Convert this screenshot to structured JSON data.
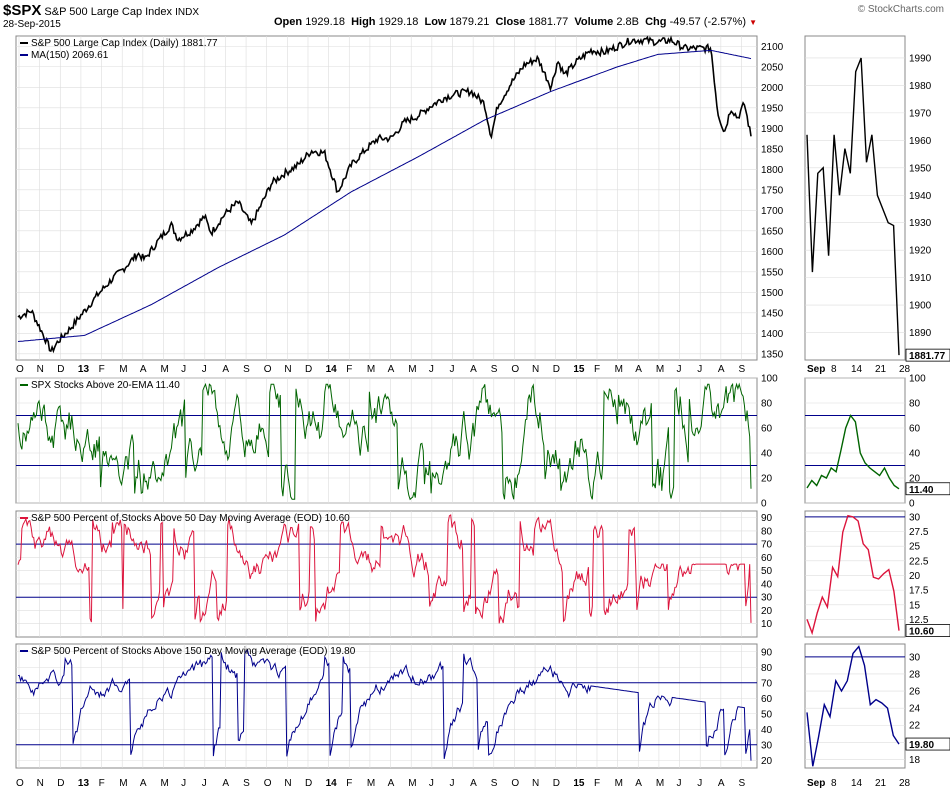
{
  "header": {
    "symbol": "$SPX",
    "name": "S&P 500 Large Cap Index",
    "exchange": "INDX",
    "date": "28-Sep-2015",
    "open_label": "Open",
    "open": "1929.18",
    "high_label": "High",
    "high": "1929.18",
    "low_label": "Low",
    "low": "1879.21",
    "close_label": "Close",
    "close": "1881.77",
    "volume_label": "Volume",
    "volume": "2.8B",
    "chg_label": "Chg",
    "chg": "-49.57 (-2.57%)",
    "watermark": "© StockCharts.com"
  },
  "colors": {
    "price": "#000000",
    "ma": "#00008b",
    "ema20": "#006400",
    "ma50": "#dc143c",
    "ma150": "#00008b",
    "hline": "#00008b",
    "grid": "#dddddd"
  },
  "time_axis": {
    "labels": [
      "O",
      "N",
      "D",
      "13",
      "F",
      "M",
      "A",
      "M",
      "J",
      "J",
      "A",
      "S",
      "O",
      "N",
      "D",
      "14",
      "F",
      "M",
      "A",
      "M",
      "J",
      "J",
      "A",
      "S",
      "O",
      "N",
      "D",
      "15",
      "F",
      "M",
      "A",
      "M",
      "J",
      "J",
      "A",
      "S"
    ],
    "bold_labels": [
      "13",
      "14",
      "15"
    ]
  },
  "zoom_axis": {
    "labels": [
      "Sep",
      "8",
      "14",
      "21",
      "28"
    ]
  },
  "chart_data": [
    {
      "type": "line",
      "title": "S&P 500 Large Cap Index (Daily) 1881.77",
      "series": [
        {
          "name": "S&P 500 Large Cap Index (Daily) 1881.77",
          "anchors": [
            [
              0,
              1440
            ],
            [
              2,
              1455
            ],
            [
              4,
              1390
            ],
            [
              5,
              1355
            ],
            [
              6,
              1380
            ],
            [
              8,
              1415
            ],
            [
              10,
              1455
            ],
            [
              12,
              1495
            ],
            [
              14,
              1530
            ],
            [
              16,
              1560
            ],
            [
              18,
              1595
            ],
            [
              19,
              1580
            ],
            [
              21,
              1625
            ],
            [
              23,
              1665
            ],
            [
              24,
              1630
            ],
            [
              26,
              1650
            ],
            [
              28,
              1685
            ],
            [
              29,
              1645
            ],
            [
              31,
              1690
            ],
            [
              33,
              1720
            ],
            [
              35,
              1665
            ],
            [
              37,
              1730
            ],
            [
              38,
              1765
            ],
            [
              40,
              1790
            ],
            [
              42,
              1810
            ],
            [
              44,
              1845
            ],
            [
              46,
              1840
            ],
            [
              48,
              1745
            ],
            [
              50,
              1810
            ],
            [
              52,
              1845
            ],
            [
              54,
              1875
            ],
            [
              56,
              1875
            ],
            [
              58,
              1915
            ],
            [
              60,
              1930
            ],
            [
              62,
              1955
            ],
            [
              64,
              1975
            ],
            [
              66,
              1985
            ],
            [
              68,
              1990
            ],
            [
              70,
              1960
            ],
            [
              71,
              1880
            ],
            [
              72,
              1955
            ],
            [
              74,
              2010
            ],
            [
              76,
              2055
            ],
            [
              78,
              2070
            ],
            [
              80,
              2000
            ],
            [
              81,
              2065
            ],
            [
              82,
              2030
            ],
            [
              84,
              2065
            ],
            [
              86,
              2090
            ],
            [
              88,
              2085
            ],
            [
              90,
              2100
            ],
            [
              92,
              2115
            ],
            [
              94,
              2115
            ],
            [
              96,
              2110
            ],
            [
              98,
              2115
            ],
            [
              100,
              2095
            ],
            [
              102,
              2095
            ],
            [
              104,
              2095
            ],
            [
              105,
              1940
            ],
            [
              106,
              1890
            ],
            [
              107,
              1950
            ],
            [
              108,
              1925
            ],
            [
              109,
              1960
            ],
            [
              110,
              1880
            ]
          ]
        },
        {
          "name": "MA(150) 2069.61",
          "anchors": [
            [
              0,
              1380
            ],
            [
              10,
              1395
            ],
            [
              20,
              1470
            ],
            [
              30,
              1560
            ],
            [
              40,
              1640
            ],
            [
              50,
              1745
            ],
            [
              60,
              1830
            ],
            [
              70,
              1920
            ],
            [
              80,
              1990
            ],
            [
              90,
              2050
            ],
            [
              96,
              2080
            ],
            [
              104,
              2090
            ],
            [
              110,
              2070
            ]
          ]
        }
      ],
      "y_ticks": [
        1350,
        1400,
        1450,
        1500,
        1550,
        1600,
        1650,
        1700,
        1750,
        1800,
        1850,
        1900,
        1950,
        2000,
        2050,
        2100
      ],
      "ylim": [
        1335,
        2125
      ]
    },
    {
      "type": "line",
      "title": "SPX Stocks Above 20-EMA 11.40",
      "series": [
        {
          "name": "SPX Stocks Above 20-EMA 11.40",
          "last": 11.4
        }
      ],
      "y_ticks": [
        0,
        20,
        40,
        60,
        80,
        100
      ],
      "ylim": [
        0,
        100
      ],
      "reference_lines": [
        30,
        70
      ]
    },
    {
      "type": "line",
      "title": "S&P 500 Percent of Stocks Above 50 Day Moving Average (EOD) 10.60",
      "series": [
        {
          "name": "S&P 500 Percent of Stocks Above 50 Day Moving Average (EOD) 10.60",
          "last": 10.6
        }
      ],
      "y_ticks": [
        10,
        20,
        30,
        40,
        50,
        60,
        70,
        80,
        90
      ],
      "ylim": [
        0,
        95
      ],
      "reference_lines": [
        30,
        70
      ]
    },
    {
      "type": "line",
      "title": "S&P 500 Percent of Stocks Above 150 Day Moving Average (EOD) 19.80",
      "series": [
        {
          "name": "S&P 500 Percent of Stocks Above 150 Day Moving Average (EOD) 19.80",
          "last": 19.8
        }
      ],
      "y_ticks": [
        20,
        30,
        40,
        50,
        60,
        70,
        80,
        90
      ],
      "ylim": [
        15,
        95
      ],
      "reference_lines": [
        30,
        70
      ]
    }
  ],
  "zoom_data": [
    {
      "values": [
        1962,
        1912,
        1948,
        1950,
        1918,
        1962,
        1940,
        1957,
        1948,
        1985,
        1990,
        1952,
        1962,
        1940,
        1935,
        1930,
        1929,
        1881.77
      ],
      "y_ticks": [
        1890,
        1900,
        1910,
        1920,
        1930,
        1940,
        1950,
        1960,
        1970,
        1980,
        1990
      ],
      "ylim": [
        1880,
        1998
      ],
      "last_label": "1881.77"
    },
    {
      "values": [
        12,
        18,
        14,
        22,
        20,
        28,
        25,
        42,
        60,
        70,
        65,
        40,
        32,
        28,
        25,
        22,
        28,
        20,
        14,
        11.4
      ],
      "y_ticks": [
        0,
        20,
        40,
        60,
        80,
        100
      ],
      "ylim": [
        0,
        100
      ],
      "last_label": "11.40",
      "reference_lines": [
        30,
        70
      ]
    },
    {
      "values": [
        12.5,
        10.2,
        13.6,
        16.3,
        14.6,
        21.4,
        19.8,
        27.4,
        30.2,
        30.0,
        29.3,
        25.4,
        24.4,
        19.7,
        19.4,
        20.3,
        21.0,
        17.3,
        10.6
      ],
      "y_ticks": [
        12.5,
        15.0,
        17.5,
        20.0,
        22.5,
        25.0,
        27.5,
        30.0
      ],
      "ylim": [
        9.5,
        31
      ],
      "last_label": "10.60",
      "reference_lines": [
        30.0
      ]
    },
    {
      "values": [
        23.5,
        17.2,
        20.6,
        24.4,
        23.0,
        27.2,
        26.0,
        27.2,
        30.4,
        31.2,
        29.0,
        24.4,
        25.0,
        24.6,
        24.0,
        20.8,
        19.8
      ],
      "y_ticks": [
        18,
        20,
        22,
        24,
        26,
        28,
        30
      ],
      "ylim": [
        17,
        31.5
      ],
      "last_label": "19.80",
      "reference_lines": [
        30
      ]
    }
  ]
}
